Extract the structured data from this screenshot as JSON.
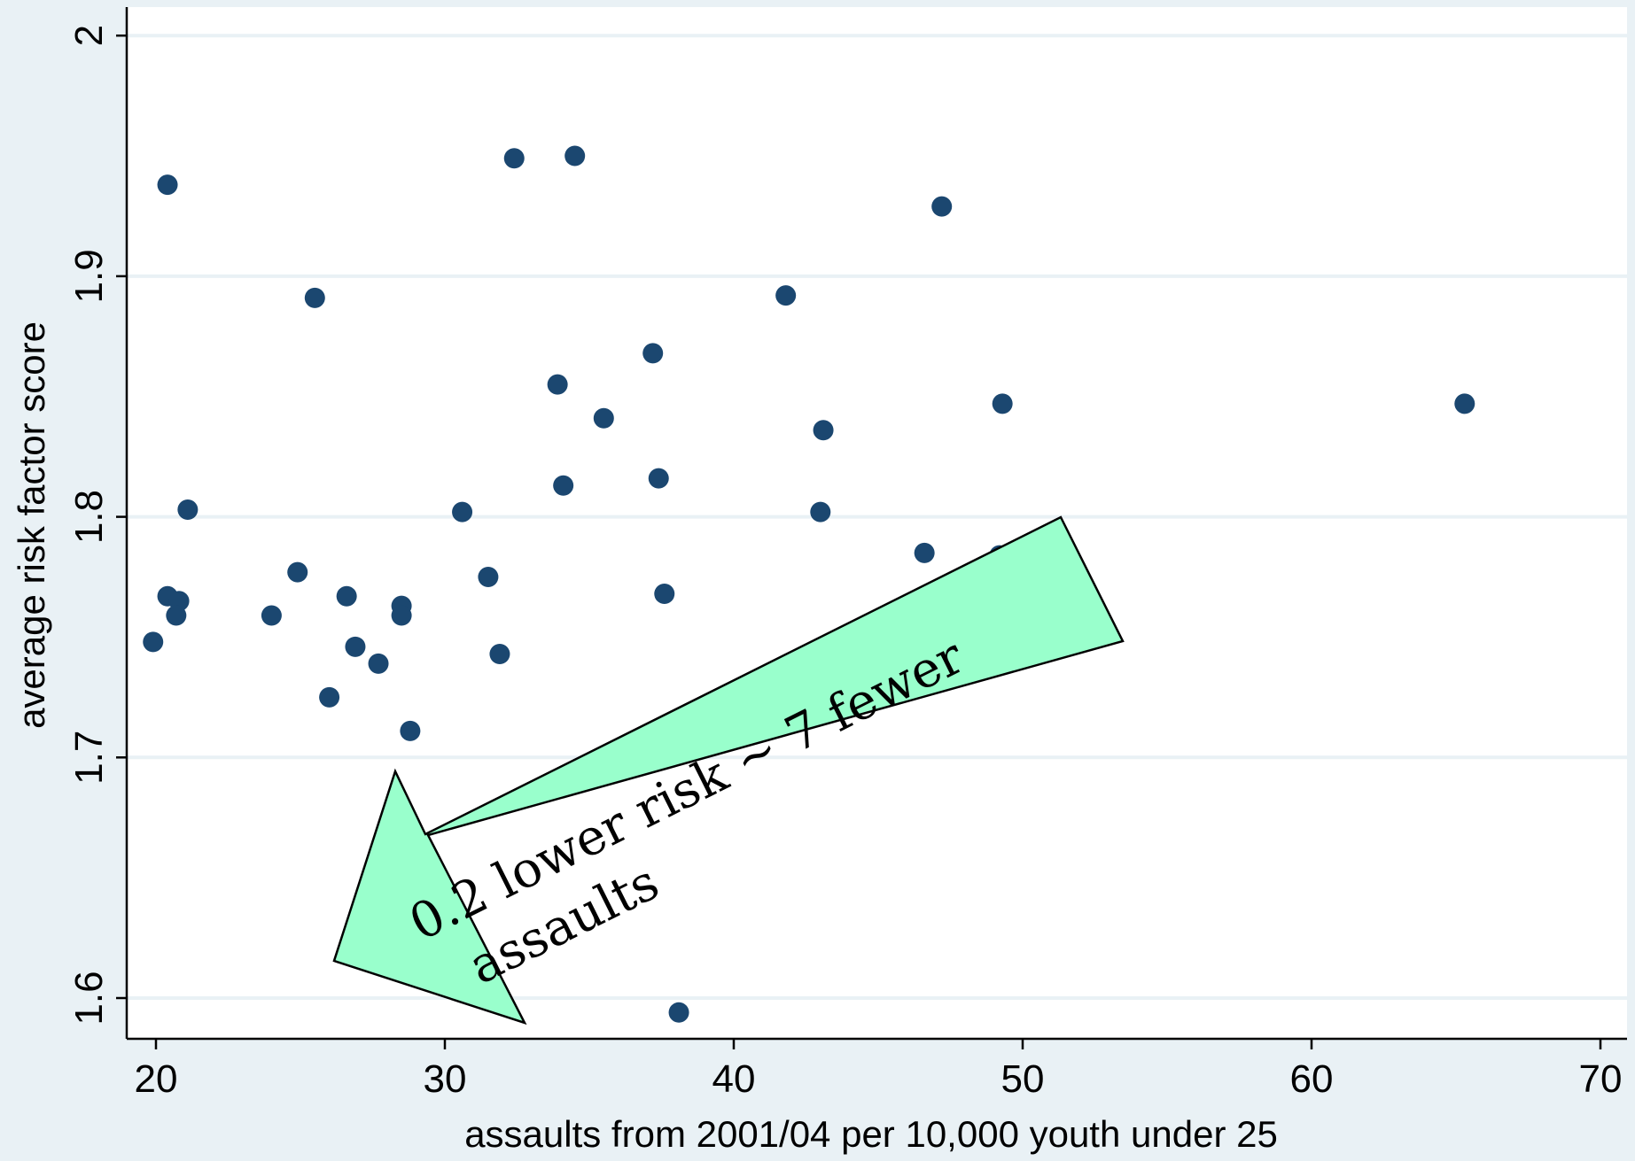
{
  "chart_data": {
    "type": "scatter",
    "xlabel": "assaults from 2001/04 per 10,000 youth under 25",
    "ylabel": "average risk factor score",
    "xlim": [
      19,
      71
    ],
    "ylim": [
      1.584,
      2.011
    ],
    "x_ticks": [
      20,
      30,
      40,
      50,
      60,
      70
    ],
    "y_ticks": [
      1.6,
      1.7,
      1.8,
      1.9,
      2
    ],
    "x_tick_labels": [
      "20",
      "30",
      "40",
      "50",
      "60",
      "70"
    ],
    "y_tick_labels": [
      "1.6",
      "1.7",
      "1.8",
      "1.9",
      "2"
    ],
    "grid": "horizontal",
    "legend": "none",
    "points": [
      {
        "x": 20.4,
        "y": 1.938
      },
      {
        "x": 21.1,
        "y": 1.803
      },
      {
        "x": 20.4,
        "y": 1.767
      },
      {
        "x": 20.8,
        "y": 1.765
      },
      {
        "x": 20.7,
        "y": 1.759
      },
      {
        "x": 19.9,
        "y": 1.748
      },
      {
        "x": 24.0,
        "y": 1.759
      },
      {
        "x": 24.9,
        "y": 1.777
      },
      {
        "x": 25.5,
        "y": 1.891
      },
      {
        "x": 26.0,
        "y": 1.725
      },
      {
        "x": 26.6,
        "y": 1.767
      },
      {
        "x": 26.9,
        "y": 1.746
      },
      {
        "x": 27.7,
        "y": 1.739
      },
      {
        "x": 28.5,
        "y": 1.763
      },
      {
        "x": 28.5,
        "y": 1.759
      },
      {
        "x": 28.8,
        "y": 1.711
      },
      {
        "x": 30.6,
        "y": 1.802
      },
      {
        "x": 31.5,
        "y": 1.775
      },
      {
        "x": 31.9,
        "y": 1.743
      },
      {
        "x": 32.4,
        "y": 1.949
      },
      {
        "x": 33.9,
        "y": 1.855
      },
      {
        "x": 34.1,
        "y": 1.813
      },
      {
        "x": 34.5,
        "y": 1.95
      },
      {
        "x": 35.5,
        "y": 1.841
      },
      {
        "x": 37.2,
        "y": 1.868
      },
      {
        "x": 37.4,
        "y": 1.816
      },
      {
        "x": 37.6,
        "y": 1.768
      },
      {
        "x": 38.1,
        "y": 1.594
      },
      {
        "x": 41.8,
        "y": 1.892
      },
      {
        "x": 43.0,
        "y": 1.802
      },
      {
        "x": 43.1,
        "y": 1.836
      },
      {
        "x": 46.6,
        "y": 1.785
      },
      {
        "x": 47.2,
        "y": 1.929
      },
      {
        "x": 49.2,
        "y": 1.784
      },
      {
        "x": 49.3,
        "y": 1.847
      },
      {
        "x": 65.3,
        "y": 1.847
      }
    ],
    "annotations": [
      {
        "text_lines": [
          "0.2 lower risk ~ 7 fewer",
          "assaults"
        ]
      }
    ]
  },
  "colors": {
    "background": "#e9f1f5",
    "plot_area": "#ffffff",
    "marker": "#1b4770",
    "grid": "#e9f1f5",
    "arrow_fill": "#99ffcc",
    "arrow_stroke": "#000000"
  }
}
